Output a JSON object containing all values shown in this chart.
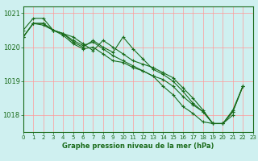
{
  "title": "Graphe pression niveau de la mer (hPa)",
  "bg_color": "#cff0f0",
  "grid_color": "#ff9999",
  "line_color": "#1a6b1a",
  "marker_color": "#1a6b1a",
  "xlim": [
    0,
    23
  ],
  "ylim": [
    1017.5,
    1021.2
  ],
  "yticks": [
    1018,
    1019,
    1020,
    1021
  ],
  "xticks": [
    0,
    1,
    2,
    3,
    4,
    5,
    6,
    7,
    8,
    9,
    10,
    11,
    12,
    13,
    14,
    15,
    16,
    17,
    18,
    19,
    20,
    21,
    22,
    23
  ],
  "series": [
    [
      1020.3,
      1020.7,
      1020.7,
      1020.5,
      1020.4,
      1020.3,
      1020.1,
      1019.9,
      1020.2,
      1020.0,
      1019.8,
      1019.6,
      1019.5,
      1019.4,
      1019.25,
      1019.1,
      1018.8,
      1018.5,
      1018.15,
      1017.75,
      1017.75,
      1018.1,
      1018.85
    ],
    [
      1020.5,
      1020.85,
      1020.85,
      1020.5,
      1020.4,
      1020.15,
      1020.0,
      1020.2,
      1020.0,
      1019.85,
      1020.3,
      1019.95,
      1019.65,
      1019.35,
      1019.2,
      1019.0,
      1018.7,
      1018.35,
      1018.1,
      1017.75,
      1017.75,
      1018.15,
      1018.85
    ],
    [
      1020.3,
      1020.7,
      1020.7,
      1020.5,
      1020.35,
      1020.1,
      1019.95,
      1020.0,
      1019.8,
      1019.6,
      1019.55,
      1019.4,
      1019.3,
      1019.15,
      1018.85,
      1018.6,
      1018.25,
      1018.05,
      1017.8,
      1017.75,
      1017.75,
      1018.0,
      null
    ],
    [
      1020.3,
      1020.7,
      1020.65,
      1020.5,
      1020.4,
      1020.2,
      1020.05,
      1020.15,
      1019.95,
      1019.75,
      1019.6,
      1019.45,
      1019.3,
      1019.15,
      1019.05,
      1018.85,
      1018.55,
      1018.3,
      1018.1,
      1017.75,
      1017.75,
      1018.1,
      1018.85
    ]
  ]
}
